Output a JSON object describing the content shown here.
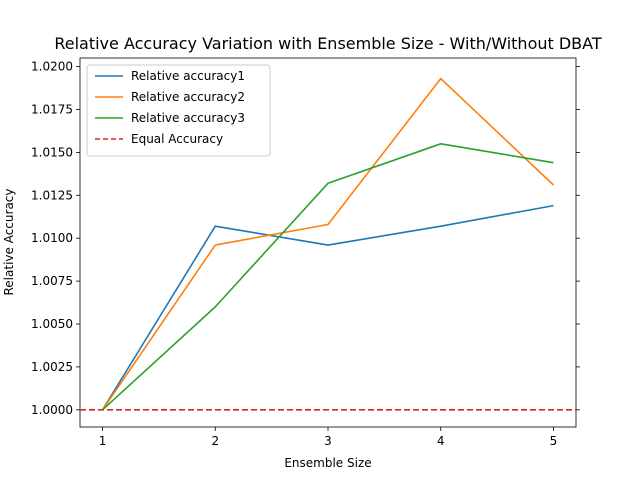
{
  "chart_data": {
    "type": "line",
    "title": "Relative Accuracy Variation with Ensemble Size - With/Without DBAT",
    "xlabel": "Ensemble Size",
    "ylabel": "Relative Accuracy",
    "x": [
      1,
      2,
      3,
      4,
      5
    ],
    "xticks": [
      1,
      2,
      3,
      4,
      5
    ],
    "xlim": [
      0.8,
      5.2
    ],
    "ylim": [
      0.999,
      1.0205
    ],
    "yticks": [
      1.0,
      1.0025,
      1.005,
      1.0075,
      1.01,
      1.0125,
      1.015,
      1.0175,
      1.02
    ],
    "ytick_labels": [
      "1.0000",
      "1.0025",
      "1.0050",
      "1.0075",
      "1.0100",
      "1.0125",
      "1.0150",
      "1.0175",
      "1.0200"
    ],
    "series": [
      {
        "name": "Relative accuracy1",
        "color": "#1f77b4",
        "style": "solid",
        "values": [
          1.0,
          1.0107,
          1.0096,
          1.0107,
          1.0119
        ]
      },
      {
        "name": "Relative accuracy2",
        "color": "#ff7f0e",
        "style": "solid",
        "values": [
          1.0,
          1.0096,
          1.0108,
          1.0193,
          1.0131
        ]
      },
      {
        "name": "Relative accuracy3",
        "color": "#2ca02c",
        "style": "solid",
        "values": [
          1.0,
          1.006,
          1.0132,
          1.0155,
          1.0144
        ]
      }
    ],
    "reference_line": {
      "name": "Equal Accuracy",
      "y": 1.0,
      "color": "#d62728",
      "style": "dashed"
    },
    "grid": false,
    "legend_position": "upper-left"
  }
}
